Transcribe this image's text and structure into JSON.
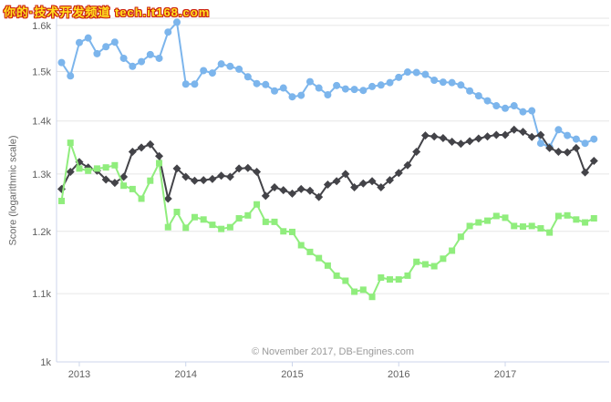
{
  "watermark": {
    "text": "你的·技术开发频道 tech.it168.com",
    "text_color": "#ffe11f",
    "outline_color": "#cc2211"
  },
  "chart_data": {
    "type": "line",
    "y_axis_title": "Score (logarithmic scale)",
    "credits": "© November 2017, DB-Engines.com",
    "y_scale": "logarithmic",
    "ylim": [
      1000,
      1616
    ],
    "grid": true,
    "legend": "none",
    "y_ticks": [
      {
        "value": 1000,
        "label": "1k"
      },
      {
        "value": 1100,
        "label": "1.1k"
      },
      {
        "value": 1200,
        "label": "1.2k"
      },
      {
        "value": 1300,
        "label": "1.3k"
      },
      {
        "value": 1400,
        "label": "1.4k"
      },
      {
        "value": 1500,
        "label": "1.5k"
      },
      {
        "value": 1600,
        "label": "1.6k"
      }
    ],
    "x_tick_labels": [
      "2013",
      "2014",
      "2015",
      "2016",
      "2017"
    ],
    "x_start_month": "2012-11",
    "x_end_month": "2017-11",
    "grid_color": "#e6e6e6",
    "axis_line_color": "#ccd6eb",
    "label_color": "#606060",
    "series": [
      {
        "name": "series-blue",
        "color": "#7cb5ec",
        "marker": "circle",
        "values": [
          1519,
          1491,
          1562,
          1572,
          1538,
          1553,
          1563,
          1528,
          1511,
          1521,
          1536,
          1528,
          1585,
          1607,
          1474,
          1474,
          1502,
          1497,
          1516,
          1511,
          1505,
          1489,
          1475,
          1473,
          1460,
          1466,
          1448,
          1451,
          1479,
          1466,
          1452,
          1471,
          1464,
          1463,
          1461,
          1469,
          1472,
          1477,
          1488,
          1499,
          1498,
          1494,
          1482,
          1478,
          1477,
          1472,
          1460,
          1450,
          1440,
          1430,
          1425,
          1430,
          1418,
          1420,
          1357,
          1350,
          1383,
          1372,
          1365,
          1357,
          1365
        ]
      },
      {
        "name": "series-black",
        "color": "#434348",
        "marker": "diamond",
        "values": [
          1273,
          1304,
          1322,
          1312,
          1306,
          1290,
          1284,
          1295,
          1341,
          1349,
          1355,
          1333,
          1256,
          1310,
          1295,
          1288,
          1289,
          1291,
          1297,
          1295,
          1310,
          1311,
          1304,
          1261,
          1276,
          1271,
          1265,
          1273,
          1270,
          1259,
          1281,
          1287,
          1300,
          1276,
          1283,
          1287,
          1276,
          1289,
          1302,
          1316,
          1341,
          1372,
          1370,
          1367,
          1360,
          1356,
          1361,
          1366,
          1370,
          1373,
          1373,
          1383,
          1379,
          1369,
          1373,
          1348,
          1341,
          1340,
          1348,
          1303,
          1324
        ]
      },
      {
        "name": "series-green",
        "color": "#90ed7d",
        "marker": "square",
        "values": [
          1252,
          1358,
          1310,
          1306,
          1310,
          1312,
          1316,
          1279,
          1273,
          1256,
          1288,
          1320,
          1207,
          1233,
          1206,
          1224,
          1220,
          1211,
          1204,
          1207,
          1222,
          1227,
          1246,
          1216,
          1216,
          1200,
          1199,
          1177,
          1166,
          1156,
          1144,
          1128,
          1120,
          1103,
          1106,
          1095,
          1125,
          1122,
          1122,
          1128,
          1150,
          1146,
          1143,
          1155,
          1168,
          1191,
          1209,
          1215,
          1218,
          1226,
          1223,
          1209,
          1208,
          1209,
          1205,
          1198,
          1226,
          1227,
          1220,
          1215,
          1222
        ]
      }
    ]
  }
}
